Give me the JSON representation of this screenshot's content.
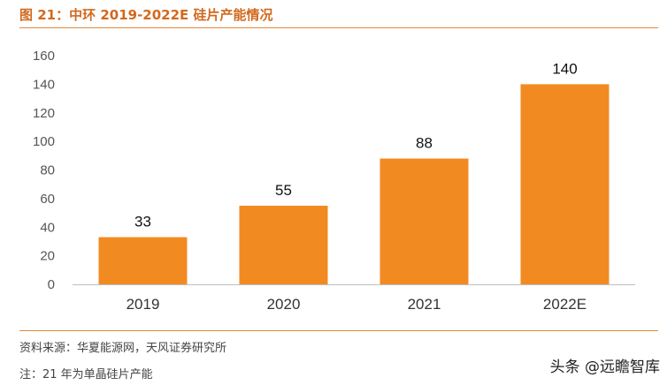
{
  "header": {
    "title": "图 21：中环 2019-2022E 硅片产能情况"
  },
  "footer": {
    "source": "资料来源：华夏能源网，天风证券研究所",
    "note": "注：21 年为单晶硅片产能",
    "watermark": "头条 @远瞻智库"
  },
  "chart_data": {
    "type": "bar",
    "title": "",
    "xlabel": "",
    "ylabel": "",
    "categories": [
      "2019",
      "2020",
      "2021",
      "2022E"
    ],
    "values": [
      33,
      55,
      88,
      140
    ],
    "ylim": [
      0,
      160
    ],
    "yticks": [
      0,
      20,
      40,
      60,
      80,
      100,
      120,
      140,
      160
    ],
    "bar_color": "#f28a22",
    "grid": false,
    "data_labels": true
  }
}
